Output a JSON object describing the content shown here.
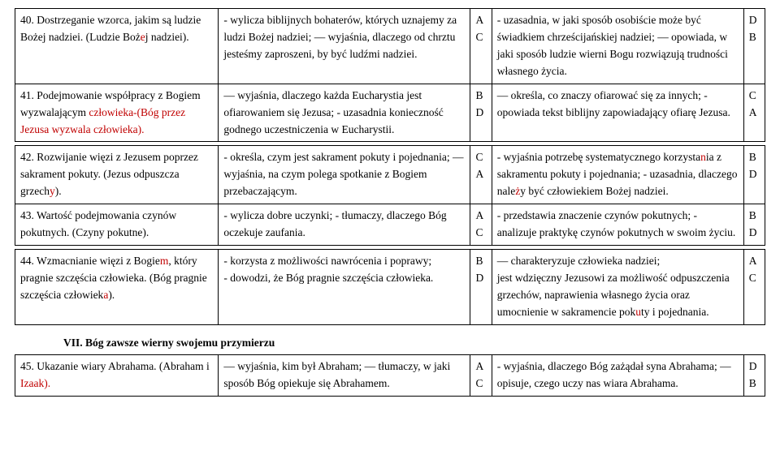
{
  "rows1": [
    {
      "c1_pre": "40. Dostrzeganie wzorca, jakim są ludzie Bożej nadziei. (Ludzie Boż",
      "c1_red": "e",
      "c1_post": "j nadziei).",
      "c2": "- wylicza biblijnych bohaterów, których uznajemy za ludzi Bożej nadziei; — wyjaśnia, dlaczego od chrztu jesteśmy zaproszeni, by być ludźmi nadziei.",
      "c3": "A\nC",
      "c4": "- uzasadnia, w jaki sposób osobiście może być świadkiem chrześcijańskiej nadziei; — opowiada, w jaki sposób ludzie wierni Bogu rozwiązują trudności własnego życia.",
      "c5": "D\nB"
    },
    {
      "c1_pre": "41. Podejmowanie współpracy z Bogiem wyzwalającym ",
      "c1_red": "człowieka-(Bóg przez Jezusa wyzwala człowieka).",
      "c1_post": "",
      "c2": "— wyjaśnia, dlaczego każda Eucharystia jest ofiarowaniem się Jezusa; - uzasadnia konieczność godnego uczestniczenia w Eucharystii.",
      "c3": "B\nD",
      "c4": "— określa, co znaczy ofiarować się za innych; - opowiada tekst biblijny zapowiadający ofiarę Jezusa.",
      "c5": "C\nA"
    }
  ],
  "rows2": [
    {
      "c1_pre": "42. Rozwijanie więzi z Jezusem poprzez sakrament pokuty. (Jezus odpuszcza grzech",
      "c1_red": "y",
      "c1_post": ").",
      "c2": "- określa, czym jest sakrament pokuty i pojednania; — wyjaśnia, na czym polega spotkanie z Bogiem przebaczającym.",
      "c3": "C\nA",
      "c4_pre": "- wyjaśnia potrzebę systematycznego korzysta",
      "c4_red1": "n",
      "c4_mid": "ia z sakramentu pokuty i pojednania; - uzasadnia, dlaczego nale",
      "c4_red2": "ż",
      "c4_post": "y być człowiekiem Bożej nadziei.",
      "c5": "B\nD"
    },
    {
      "c1_pre": "43. Wartość podejmowania czynów pokutnych. (Czyny pokutne).",
      "c1_red": "",
      "c1_post": "",
      "c2": "- wylicza dobre uczynki; - tłumaczy, dlaczego Bóg oczekuje zaufania.",
      "c3": "A\nC",
      "c4_pre": "- przedstawia znaczenie czynów pokutnych; - analizuje praktykę czynów pokutnych w swoim życiu.",
      "c4_red1": "",
      "c4_mid": "",
      "c4_red2": "",
      "c4_post": "",
      "c5": "B\nD"
    }
  ],
  "rows3": [
    {
      "c1_pre": "44. Wzmacnianie więzi z Bogie",
      "c1_red": "m",
      "c1_mid": ", który pragnie szczęścia człowieka. (Bóg pragnie szczęścia człowiek",
      "c1_red2": "a",
      "c1_post": ").",
      "c2": "- korzysta z możliwości nawrócenia i poprawy;\n- dowodzi, że Bóg pragnie szczęścia człowieka.",
      "c3": "B\nD",
      "c4_pre": "— charakteryzuje człowieka nadziei;\njest wdzięczny Jezusowi za możliwość odpuszczenia grzechów, naprawienia własnego życia oraz umocnienie w sakramencie pok",
      "c4_red": "u",
      "c4_post": "ty i pojednania.",
      "c5": "A\nC"
    }
  ],
  "section": "VII.  Bóg zawsze wierny swojemu przymierzu",
  "rows4": [
    {
      "c1_pre": "45. Ukazanie wiary Abrahama. (Abraham i ",
      "c1_red": "Izaak).",
      "c1_post": "",
      "c2": "— wyjaśnia, kim był Abraham; — tłumaczy, w jaki sposób Bóg opiekuje się Abrahamem.",
      "c3": "A\nC",
      "c4": "- wyjaśnia, dlaczego Bóg zażądał syna Abrahama; — opisuje, czego uczy nas wiara Abrahama.",
      "c5": "D\nB"
    }
  ]
}
